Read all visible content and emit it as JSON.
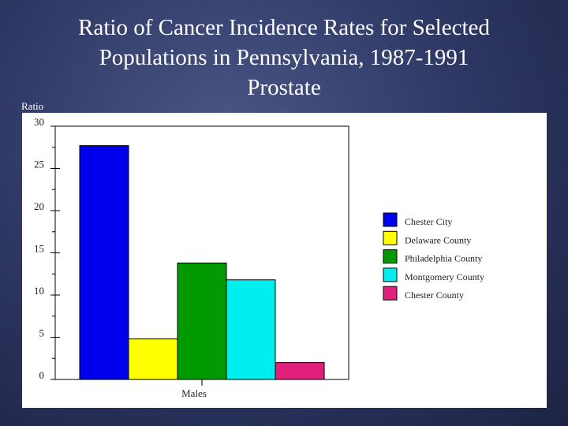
{
  "slide": {
    "title_lines": [
      "Ratio of Cancer Incidence Rates for Selected",
      "Populations in Pennsylvania, 1987-1991",
      "Prostate"
    ]
  },
  "chart_data": {
    "type": "bar",
    "title": "Ratio of Cancer Incidence Rates for Selected Populations in Pennsylvania, 1987-1991 Prostate",
    "ylabel": "Ratio",
    "xlabel": "",
    "ylim": [
      0,
      30
    ],
    "yticks": [
      "0",
      "5",
      "10",
      "15",
      "20",
      "25",
      "30"
    ],
    "categories": [
      "Males"
    ],
    "legend_position": "right",
    "series": [
      {
        "name": "Chester City",
        "values": [
          27.7
        ],
        "color": "#0000ee"
      },
      {
        "name": "Delaware County",
        "values": [
          4.8
        ],
        "color": "#ffff00"
      },
      {
        "name": "Philadelphia County",
        "values": [
          13.8
        ],
        "color": "#009900"
      },
      {
        "name": "Montgomery County",
        "values": [
          11.8
        ],
        "color": "#00eeee"
      },
      {
        "name": "Chester County",
        "values": [
          2.0
        ],
        "color": "#e0207a"
      }
    ]
  }
}
